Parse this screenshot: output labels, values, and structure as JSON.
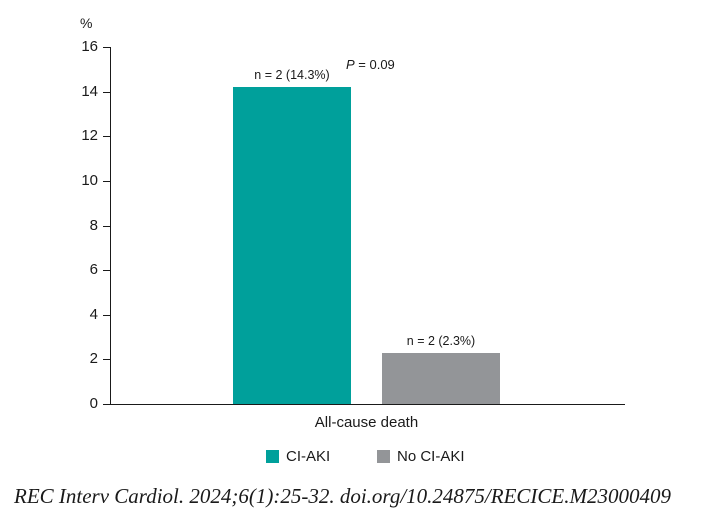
{
  "chart_data": {
    "type": "bar",
    "title": "",
    "xlabel": "",
    "ylabel": "%",
    "ylim": [
      0,
      16
    ],
    "yticks": [
      0,
      2,
      4,
      6,
      8,
      10,
      12,
      14,
      16
    ],
    "categories": [
      "All-cause death"
    ],
    "series": [
      {
        "name": "CI-AKI",
        "values": [
          14.3
        ],
        "color": "#00a09b",
        "annotation": "n = 2 (14.3%)"
      },
      {
        "name": "No CI-AKI",
        "values": [
          2.3
        ],
        "color": "#939598",
        "annotation": "n = 2 (2.3%)"
      }
    ],
    "annotations": [
      {
        "text": "P = 0.09",
        "italic_part": "P"
      }
    ],
    "grid": false,
    "legend_position": "bottom"
  },
  "yaxis": {
    "unit": "%",
    "ticks": [
      "0",
      "2",
      "4",
      "6",
      "8",
      "10",
      "12",
      "14",
      "16"
    ]
  },
  "bars": {
    "ci_aki_label": "n = 2 (14.3%)",
    "no_ci_aki_label": "n = 2 (2.3%)"
  },
  "pvalue": {
    "p": "P",
    "rest": " = 0.09"
  },
  "xaxis": {
    "category": "All-cause death"
  },
  "legend": {
    "items": [
      {
        "label": "CI-AKI"
      },
      {
        "label": "No CI-AKI"
      }
    ]
  },
  "citation": "REC Interv Cardiol. 2024;6(1):25-32. doi.org/10.24875/RECICE.M23000409"
}
